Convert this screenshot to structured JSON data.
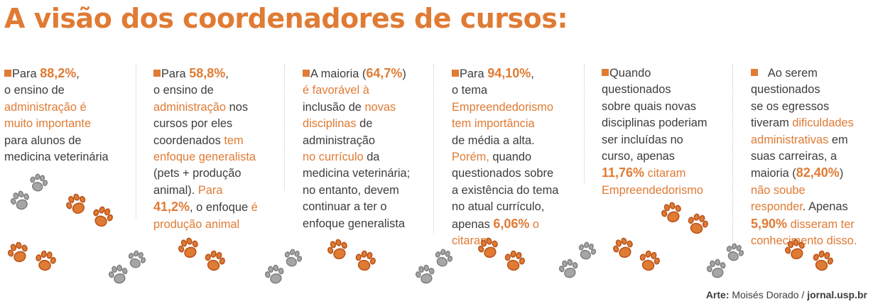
{
  "title": "A visão dos coordenadores de cursos:",
  "columns": [
    {
      "segments": [
        {
          "t": "Para ",
          "s": "n"
        },
        {
          "t": "88,2%",
          "s": "b"
        },
        {
          "t": ",",
          "s": "n"
        },
        {
          "br": true
        },
        {
          "t": "o ensino de",
          "s": "n"
        },
        {
          "br": true
        },
        {
          "t": "administração é",
          "s": "h"
        },
        {
          "br": true
        },
        {
          "t": "muito importante",
          "s": "h"
        },
        {
          "br": true
        },
        {
          "t": "para alunos de",
          "s": "n"
        },
        {
          "br": true
        },
        {
          "t": "medicina veterinária",
          "s": "n"
        }
      ]
    },
    {
      "segments": [
        {
          "t": "Para ",
          "s": "n"
        },
        {
          "t": "58,8%",
          "s": "b"
        },
        {
          "t": ",",
          "s": "n"
        },
        {
          "br": true
        },
        {
          "t": "o ensino de",
          "s": "n"
        },
        {
          "br": true
        },
        {
          "t": "administração",
          "s": "h"
        },
        {
          "t": " nos",
          "s": "n"
        },
        {
          "br": true
        },
        {
          "t": "cursos por eles",
          "s": "n"
        },
        {
          "br": true
        },
        {
          "t": "coordenados ",
          "s": "n"
        },
        {
          "t": "tem",
          "s": "h"
        },
        {
          "br": true
        },
        {
          "t": "enfoque generalista",
          "s": "h"
        },
        {
          "br": true
        },
        {
          "t": "(pets + produção",
          "s": "n"
        },
        {
          "br": true
        },
        {
          "t": "animal). ",
          "s": "n"
        },
        {
          "t": "Para",
          "s": "h"
        },
        {
          "br": true
        },
        {
          "t": "41,2%",
          "s": "b"
        },
        {
          "t": ", o enfoque ",
          "s": "n"
        },
        {
          "t": "é",
          "s": "h"
        },
        {
          "br": true
        },
        {
          "t": "produção animal",
          "s": "h"
        }
      ]
    },
    {
      "segments": [
        {
          "t": "A maioria (",
          "s": "n"
        },
        {
          "t": "64,7%",
          "s": "b"
        },
        {
          "t": ")",
          "s": "n"
        },
        {
          "br": true
        },
        {
          "t": "é favorável à",
          "s": "h"
        },
        {
          "br": true
        },
        {
          "t": "inclusão de ",
          "s": "n"
        },
        {
          "t": "novas",
          "s": "h"
        },
        {
          "br": true
        },
        {
          "t": "disciplinas",
          "s": "h"
        },
        {
          "t": " de",
          "s": "n"
        },
        {
          "br": true
        },
        {
          "t": "administração",
          "s": "n"
        },
        {
          "br": true
        },
        {
          "t": "no currículo",
          "s": "h"
        },
        {
          "t": " da",
          "s": "n"
        },
        {
          "br": true
        },
        {
          "t": "medicina veterinária;",
          "s": "n"
        },
        {
          "br": true
        },
        {
          "t": "no entanto, devem",
          "s": "n"
        },
        {
          "br": true
        },
        {
          "t": "continuar a ter o",
          "s": "n"
        },
        {
          "br": true
        },
        {
          "t": "enfoque generalista",
          "s": "n"
        }
      ]
    },
    {
      "segments": [
        {
          "t": "Para ",
          "s": "n"
        },
        {
          "t": "94,10%",
          "s": "b"
        },
        {
          "t": ",",
          "s": "n"
        },
        {
          "br": true
        },
        {
          "t": "o tema",
          "s": "n"
        },
        {
          "br": true
        },
        {
          "t": "Empreendedorismo",
          "s": "h"
        },
        {
          "br": true
        },
        {
          "t": "tem importância",
          "s": "h"
        },
        {
          "br": true
        },
        {
          "t": "de média a alta.",
          "s": "n"
        },
        {
          "br": true
        },
        {
          "t": "Porém,",
          "s": "h"
        },
        {
          "t": " quando",
          "s": "n"
        },
        {
          "br": true
        },
        {
          "t": "questionados sobre",
          "s": "n"
        },
        {
          "br": true
        },
        {
          "t": "a existência do tema",
          "s": "n"
        },
        {
          "br": true
        },
        {
          "t": "no atual currículo,",
          "s": "n"
        },
        {
          "br": true
        },
        {
          "t": "apenas ",
          "s": "n"
        },
        {
          "t": "6,06%",
          "s": "b"
        },
        {
          "t": " o",
          "s": "h"
        },
        {
          "br": true
        },
        {
          "t": "citaram",
          "s": "h"
        }
      ]
    },
    {
      "segments": [
        {
          "t": "Quando",
          "s": "n"
        },
        {
          "br": true
        },
        {
          "t": "questionados",
          "s": "n"
        },
        {
          "br": true
        },
        {
          "t": "sobre quais novas",
          "s": "n"
        },
        {
          "br": true
        },
        {
          "t": "disciplinas poderiam",
          "s": "n"
        },
        {
          "br": true
        },
        {
          "t": "ser incluídas no",
          "s": "n"
        },
        {
          "br": true
        },
        {
          "t": "curso, apenas",
          "s": "n"
        },
        {
          "br": true
        },
        {
          "t": "11,76%",
          "s": "b"
        },
        {
          "t": " citaram",
          "s": "h"
        },
        {
          "br": true
        },
        {
          "t": "Empreendedorismo",
          "s": "h"
        }
      ]
    },
    {
      "segments": [
        {
          "t": "   Ao serem",
          "s": "n"
        },
        {
          "br": true
        },
        {
          "t": "questionados",
          "s": "n"
        },
        {
          "br": true
        },
        {
          "t": "se os egressos",
          "s": "n"
        },
        {
          "br": true
        },
        {
          "t": "tiveram ",
          "s": "n"
        },
        {
          "t": "dificuldades",
          "s": "h"
        },
        {
          "br": true
        },
        {
          "t": "administrativas",
          "s": "h"
        },
        {
          "t": " em",
          "s": "n"
        },
        {
          "br": true
        },
        {
          "t": "suas carreiras, a",
          "s": "n"
        },
        {
          "br": true
        },
        {
          "t": "maioria (",
          "s": "n"
        },
        {
          "t": "82,40%",
          "s": "b"
        },
        {
          "t": ")",
          "s": "n"
        },
        {
          "br": true
        },
        {
          "t": "não soube",
          "s": "h"
        },
        {
          "br": true
        },
        {
          "t": "responder",
          "s": "h"
        },
        {
          "t": ". Apenas",
          "s": "n"
        },
        {
          "br": true
        },
        {
          "t": "5,90%",
          "s": "b"
        },
        {
          "t": " disseram ter",
          "s": "h"
        },
        {
          "br": true
        },
        {
          "t": "conhecimento disso.",
          "s": "h"
        }
      ]
    }
  ],
  "credit": {
    "label": "Arte:",
    "author": " Moisés Dorado / ",
    "site": "jornal.usp.br"
  },
  "colors": {
    "accent": "#e07b34",
    "paw_gray": "#a6a6a6",
    "text": "#3d3d3d"
  },
  "icons": [
    "paw-print-icon"
  ]
}
